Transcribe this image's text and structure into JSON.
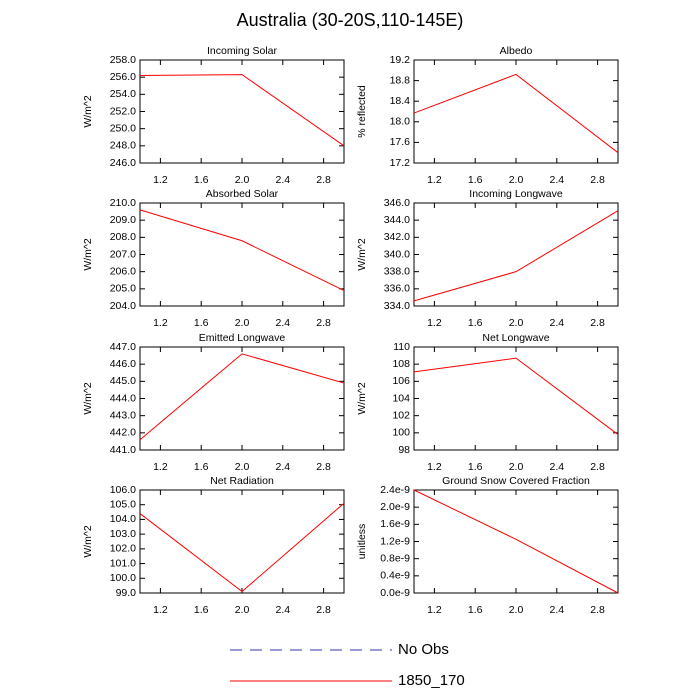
{
  "title": "Australia (30-20S,110-145E)",
  "legend": [
    {
      "name": "No Obs",
      "color": "#3333aa",
      "dashed": true
    },
    {
      "name": "1850_170",
      "color": "#ff0000",
      "dashed": false
    }
  ],
  "chart_data": [
    {
      "type": "line",
      "title": "Incoming Solar",
      "ylabel": "W/m^2",
      "x": [
        1,
        2,
        3
      ],
      "values": [
        256.2,
        256.3,
        248.0
      ],
      "color": "#ff0000",
      "xlim": [
        1,
        3
      ],
      "xticks": [
        1.2,
        1.6,
        {
          "value": 2,
          "label": "2.0"
        },
        2.4,
        2.8
      ],
      "ylim": [
        246,
        258
      ],
      "yticks": [
        {
          "value": 246,
          "label": "246.0"
        },
        {
          "value": 248,
          "label": "248.0"
        },
        {
          "value": 250,
          "label": "250.0"
        },
        {
          "value": 252,
          "label": "252.0"
        },
        {
          "value": 254,
          "label": "254.0"
        },
        {
          "value": 256,
          "label": "256.0"
        },
        {
          "value": 258,
          "label": "258.0"
        }
      ]
    },
    {
      "type": "line",
      "title": "Albedo",
      "ylabel": "% reflected",
      "x": [
        1,
        2,
        3
      ],
      "values": [
        18.17,
        18.92,
        17.4
      ],
      "color": "#ff0000",
      "xlim": [
        1,
        3
      ],
      "xticks": [
        1.2,
        1.6,
        {
          "value": 2,
          "label": "2.0"
        },
        2.4,
        2.8
      ],
      "ylim": [
        17.2,
        19.2
      ],
      "yticks": [
        17.2,
        17.6,
        {
          "value": 18,
          "label": "18.0"
        },
        18.4,
        18.8,
        19.2
      ]
    },
    {
      "type": "line",
      "title": "Absorbed Solar",
      "ylabel": "W/m^2",
      "x": [
        1,
        2,
        3
      ],
      "values": [
        209.6,
        207.8,
        204.9
      ],
      "color": "#ff0000",
      "xlim": [
        1,
        3
      ],
      "xticks": [
        1.2,
        1.6,
        {
          "value": 2,
          "label": "2.0"
        },
        2.4,
        2.8
      ],
      "ylim": [
        204,
        210
      ],
      "yticks": [
        {
          "value": 204,
          "label": "204.0"
        },
        {
          "value": 205,
          "label": "205.0"
        },
        {
          "value": 206,
          "label": "206.0"
        },
        {
          "value": 207,
          "label": "207.0"
        },
        {
          "value": 208,
          "label": "208.0"
        },
        {
          "value": 209,
          "label": "209.0"
        },
        {
          "value": 210,
          "label": "210.0"
        }
      ]
    },
    {
      "type": "line",
      "title": "Incoming Longwave",
      "ylabel": "W/m^2",
      "x": [
        1,
        2,
        3
      ],
      "values": [
        334.6,
        338.0,
        345.1
      ],
      "color": "#ff0000",
      "xlim": [
        1,
        3
      ],
      "xticks": [
        1.2,
        1.6,
        {
          "value": 2,
          "label": "2.0"
        },
        2.4,
        2.8
      ],
      "ylim": [
        334,
        346
      ],
      "yticks": [
        {
          "value": 334,
          "label": "334.0"
        },
        {
          "value": 336,
          "label": "336.0"
        },
        {
          "value": 338,
          "label": "338.0"
        },
        {
          "value": 340,
          "label": "340.0"
        },
        {
          "value": 342,
          "label": "342.0"
        },
        {
          "value": 344,
          "label": "344.0"
        },
        {
          "value": 346,
          "label": "346.0"
        }
      ]
    },
    {
      "type": "line",
      "title": "Emitted Longwave",
      "ylabel": "W/m^2",
      "x": [
        1,
        2,
        3
      ],
      "values": [
        441.6,
        446.6,
        444.9
      ],
      "color": "#ff0000",
      "xlim": [
        1,
        3
      ],
      "xticks": [
        1.2,
        1.6,
        {
          "value": 2,
          "label": "2.0"
        },
        2.4,
        2.8
      ],
      "ylim": [
        441,
        447
      ],
      "yticks": [
        {
          "value": 441,
          "label": "441.0"
        },
        {
          "value": 442,
          "label": "442.0"
        },
        {
          "value": 443,
          "label": "443.0"
        },
        {
          "value": 444,
          "label": "444.0"
        },
        {
          "value": 445,
          "label": "445.0"
        },
        {
          "value": 446,
          "label": "446.0"
        },
        {
          "value": 447,
          "label": "447.0"
        }
      ]
    },
    {
      "type": "line",
      "title": "Net Longwave",
      "ylabel": "W/m^2",
      "x": [
        1,
        2,
        3
      ],
      "values": [
        107.1,
        108.7,
        99.8
      ],
      "color": "#ff0000",
      "xlim": [
        1,
        3
      ],
      "xticks": [
        1.2,
        1.6,
        {
          "value": 2,
          "label": "2.0"
        },
        2.4,
        2.8
      ],
      "ylim": [
        98,
        110
      ],
      "yticks": [
        98,
        100,
        102,
        104,
        106,
        108,
        110
      ]
    },
    {
      "type": "line",
      "title": "Net Radiation",
      "ylabel": "W/m^2",
      "x": [
        1,
        2,
        3
      ],
      "values": [
        104.4,
        99.1,
        105.1
      ],
      "color": "#ff0000",
      "xlim": [
        1,
        3
      ],
      "xticks": [
        1.2,
        1.6,
        {
          "value": 2,
          "label": "2.0"
        },
        2.4,
        2.8
      ],
      "ylim": [
        99,
        106
      ],
      "yticks": [
        {
          "value": 99,
          "label": "99.0"
        },
        {
          "value": 100,
          "label": "100.0"
        },
        {
          "value": 101,
          "label": "101.0"
        },
        {
          "value": 102,
          "label": "102.0"
        },
        {
          "value": 103,
          "label": "103.0"
        },
        {
          "value": 104,
          "label": "104.0"
        },
        {
          "value": 105,
          "label": "105.0"
        },
        {
          "value": 106,
          "label": "106.0"
        }
      ]
    },
    {
      "type": "line",
      "title": "Ground Snow Covered Fraction",
      "ylabel": "unitless",
      "x": [
        1,
        2,
        3
      ],
      "values": [
        2.4e-09,
        1.25e-09,
        0
      ],
      "color": "#ff0000",
      "xlim": [
        1,
        3
      ],
      "xticks": [
        1.2,
        1.6,
        {
          "value": 2,
          "label": "2.0"
        },
        2.4,
        2.8
      ],
      "ylim": [
        0,
        2.4e-09
      ],
      "yticks": [
        {
          "value": 0,
          "label": "0.0e-9"
        },
        {
          "value": 4e-10,
          "label": "0.4e-9"
        },
        {
          "value": 8e-10,
          "label": "0.8e-9"
        },
        {
          "value": 1.2e-09,
          "label": "1.2e-9"
        },
        {
          "value": 1.6e-09,
          "label": "1.6e-9"
        },
        {
          "value": 2e-09,
          "label": "2.0e-9"
        },
        {
          "value": 2.4e-09,
          "label": "2.4e-9"
        }
      ]
    }
  ]
}
